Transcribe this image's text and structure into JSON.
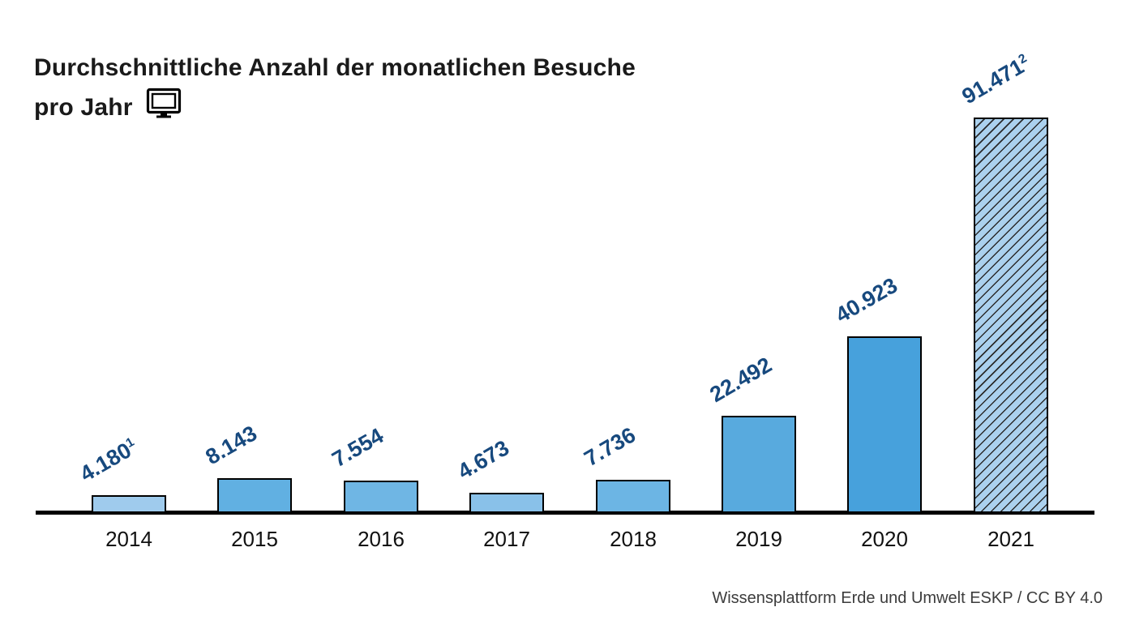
{
  "title": {
    "line1": "Durchschnittliche Anzahl der monatlichen Besuche",
    "line2": "pro Jahr",
    "icon": "monitor-icon"
  },
  "chart_data": {
    "type": "bar",
    "categories": [
      "2014",
      "2015",
      "2016",
      "2017",
      "2018",
      "2019",
      "2020",
      "2021"
    ],
    "values": [
      4180,
      8143,
      7554,
      4673,
      7736,
      22492,
      40923,
      91471
    ],
    "value_labels": [
      {
        "text": "4.180",
        "sup": "1"
      },
      {
        "text": "8.143",
        "sup": ""
      },
      {
        "text": "7.554",
        "sup": ""
      },
      {
        "text": "4.673",
        "sup": ""
      },
      {
        "text": "7.736",
        "sup": ""
      },
      {
        "text": "22.492",
        "sup": ""
      },
      {
        "text": "40.923",
        "sup": ""
      },
      {
        "text": "91.471",
        "sup": "2"
      }
    ],
    "bar_colors": [
      "#9fcbed",
      "#61b0e2",
      "#6fb6e4",
      "#89c1e9",
      "#6cb5e4",
      "#58aade",
      "#47a1dc",
      "#abd1ee"
    ],
    "hatched": [
      false,
      false,
      false,
      false,
      false,
      false,
      false,
      true
    ],
    "label_color": "#17497e",
    "bar_border_color": "#000000",
    "axis_color": "#000000",
    "label_rotation_deg": -30,
    "ylim": [
      0,
      91471
    ],
    "grid": false,
    "legend": null,
    "xlabel": "",
    "ylabel": ""
  },
  "source": "Wissensplattform Erde und Umwelt ESKP / CC BY 4.0"
}
